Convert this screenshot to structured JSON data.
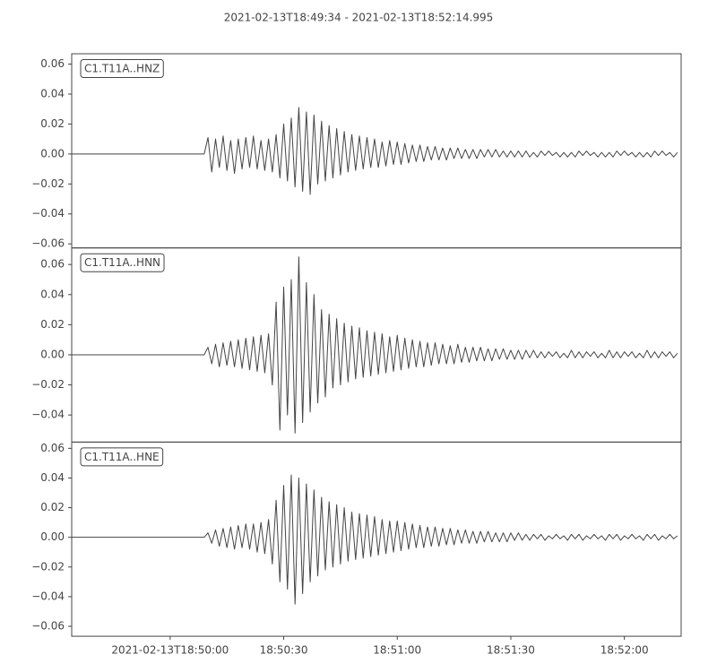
{
  "chart_data": {
    "type": "line",
    "title": "2021-02-13T18:49:34  -  2021-02-13T18:52:14.995",
    "color": "#444444",
    "xlim": [
      "2021-02-13T18:49:34",
      "2021-02-13T18:52:14.995"
    ],
    "xticks": [
      "2021-02-13T18:50:00",
      {
        "value": "2021-02-13T18:50:30",
        "label": "18:50:30"
      },
      {
        "value": "2021-02-13T18:51:00",
        "label": "18:51:00"
      },
      {
        "value": "2021-02-13T18:51:30",
        "label": "18:51:30"
      },
      {
        "value": "2021-02-13T18:52:00",
        "label": "18:52:00"
      }
    ],
    "x": [
      "2021-02-13T18:49:34",
      "2021-02-13T18:49:35",
      "2021-02-13T18:49:36",
      "2021-02-13T18:49:37",
      "2021-02-13T18:49:38",
      "2021-02-13T18:49:39",
      "2021-02-13T18:49:40",
      "2021-02-13T18:49:41",
      "2021-02-13T18:49:42",
      "2021-02-13T18:49:43",
      "2021-02-13T18:49:44",
      "2021-02-13T18:49:45",
      "2021-02-13T18:49:46",
      "2021-02-13T18:49:47",
      "2021-02-13T18:49:48",
      "2021-02-13T18:49:49",
      "2021-02-13T18:49:50",
      "2021-02-13T18:49:51",
      "2021-02-13T18:49:52",
      "2021-02-13T18:49:53",
      "2021-02-13T18:49:54",
      "2021-02-13T18:49:55",
      "2021-02-13T18:49:56",
      "2021-02-13T18:49:57",
      "2021-02-13T18:49:58",
      "2021-02-13T18:49:59",
      "2021-02-13T18:50:00",
      "2021-02-13T18:50:01",
      "2021-02-13T18:50:02",
      "2021-02-13T18:50:03",
      "2021-02-13T18:50:04",
      "2021-02-13T18:50:05",
      "2021-02-13T18:50:06",
      "2021-02-13T18:50:07",
      "2021-02-13T18:50:08",
      "2021-02-13T18:50:09",
      "2021-02-13T18:50:10",
      "2021-02-13T18:50:11",
      "2021-02-13T18:50:12",
      "2021-02-13T18:50:13",
      "2021-02-13T18:50:14",
      "2021-02-13T18:50:15",
      "2021-02-13T18:50:16",
      "2021-02-13T18:50:17",
      "2021-02-13T18:50:18",
      "2021-02-13T18:50:19",
      "2021-02-13T18:50:20",
      "2021-02-13T18:50:21",
      "2021-02-13T18:50:22",
      "2021-02-13T18:50:23",
      "2021-02-13T18:50:24",
      "2021-02-13T18:50:25",
      "2021-02-13T18:50:26",
      "2021-02-13T18:50:27",
      "2021-02-13T18:50:28",
      "2021-02-13T18:50:29",
      "2021-02-13T18:50:30",
      "2021-02-13T18:50:31",
      "2021-02-13T18:50:32",
      "2021-02-13T18:50:33",
      "2021-02-13T18:50:34",
      "2021-02-13T18:50:35",
      "2021-02-13T18:50:36",
      "2021-02-13T18:50:37",
      "2021-02-13T18:50:38",
      "2021-02-13T18:50:39",
      "2021-02-13T18:50:40",
      "2021-02-13T18:50:41",
      "2021-02-13T18:50:42",
      "2021-02-13T18:50:43",
      "2021-02-13T18:50:44",
      "2021-02-13T18:50:45",
      "2021-02-13T18:50:46",
      "2021-02-13T18:50:47",
      "2021-02-13T18:50:48",
      "2021-02-13T18:50:49",
      "2021-02-13T18:50:50",
      "2021-02-13T18:50:51",
      "2021-02-13T18:50:52",
      "2021-02-13T18:50:53",
      "2021-02-13T18:50:54",
      "2021-02-13T18:50:55",
      "2021-02-13T18:50:56",
      "2021-02-13T18:50:57",
      "2021-02-13T18:50:58",
      "2021-02-13T18:50:59",
      "2021-02-13T18:51:00",
      "2021-02-13T18:51:01",
      "2021-02-13T18:51:02",
      "2021-02-13T18:51:03",
      "2021-02-13T18:51:04",
      "2021-02-13T18:51:05",
      "2021-02-13T18:51:06",
      "2021-02-13T18:51:07",
      "2021-02-13T18:51:08",
      "2021-02-13T18:51:09",
      "2021-02-13T18:51:10",
      "2021-02-13T18:51:11",
      "2021-02-13T18:51:12",
      "2021-02-13T18:51:13",
      "2021-02-13T18:51:14",
      "2021-02-13T18:51:15",
      "2021-02-13T18:51:16",
      "2021-02-13T18:51:17",
      "2021-02-13T18:51:18",
      "2021-02-13T18:51:19",
      "2021-02-13T18:51:20",
      "2021-02-13T18:51:21",
      "2021-02-13T18:51:22",
      "2021-02-13T18:51:23",
      "2021-02-13T18:51:24",
      "2021-02-13T18:51:25",
      "2021-02-13T18:51:26",
      "2021-02-13T18:51:27",
      "2021-02-13T18:51:28",
      "2021-02-13T18:51:29",
      "2021-02-13T18:51:30",
      "2021-02-13T18:51:31",
      "2021-02-13T18:51:32",
      "2021-02-13T18:51:33",
      "2021-02-13T18:51:34",
      "2021-02-13T18:51:35",
      "2021-02-13T18:51:36",
      "2021-02-13T18:51:37",
      "2021-02-13T18:51:38",
      "2021-02-13T18:51:39",
      "2021-02-13T18:51:40",
      "2021-02-13T18:51:41",
      "2021-02-13T18:51:42",
      "2021-02-13T18:51:43",
      "2021-02-13T18:51:44",
      "2021-02-13T18:51:45",
      "2021-02-13T18:51:46",
      "2021-02-13T18:51:47",
      "2021-02-13T18:51:48",
      "2021-02-13T18:51:49",
      "2021-02-13T18:51:50",
      "2021-02-13T18:51:51",
      "2021-02-13T18:51:52",
      "2021-02-13T18:51:53",
      "2021-02-13T18:51:54",
      "2021-02-13T18:51:55",
      "2021-02-13T18:51:56",
      "2021-02-13T18:51:57",
      "2021-02-13T18:51:58",
      "2021-02-13T18:51:59",
      "2021-02-13T18:52:00",
      "2021-02-13T18:52:01",
      "2021-02-13T18:52:02",
      "2021-02-13T18:52:03",
      "2021-02-13T18:52:04",
      "2021-02-13T18:52:05",
      "2021-02-13T18:52:06",
      "2021-02-13T18:52:07",
      "2021-02-13T18:52:08",
      "2021-02-13T18:52:09",
      "2021-02-13T18:52:10",
      "2021-02-13T18:52:11",
      "2021-02-13T18:52:12",
      "2021-02-13T18:52:13",
      "2021-02-13T18:52:14"
    ],
    "series": [
      {
        "name": "C1.T11A..HNZ",
        "ylim": [
          -0.0627,
          0.0669
        ],
        "yticks": [
          {
            "value": -0.06,
            "label": "−0.06"
          },
          {
            "value": -0.04,
            "label": "−0.04"
          },
          {
            "value": -0.02,
            "label": "−0.02"
          },
          {
            "value": 0,
            "label": "0.00"
          },
          0.02,
          0.04,
          0.06
        ],
        "values": [
          0,
          0,
          0,
          0,
          0,
          0,
          0,
          0,
          0,
          0,
          0,
          0,
          0,
          0,
          0,
          0,
          0,
          0,
          0,
          0,
          0,
          0,
          0,
          0,
          0,
          0,
          0,
          0,
          0,
          0,
          0,
          0,
          0,
          0,
          0,
          0,
          0.011,
          -0.012,
          0.01,
          -0.009,
          0.012,
          -0.011,
          0.009,
          -0.013,
          0.01,
          -0.01,
          0.011,
          -0.009,
          0.012,
          -0.01,
          0.009,
          -0.011,
          0.01,
          -0.012,
          0.013,
          -0.016,
          0.02,
          -0.018,
          0.024,
          -0.022,
          0.031,
          -0.025,
          0.028,
          -0.027,
          0.026,
          -0.02,
          0.022,
          -0.018,
          0.019,
          -0.016,
          0.017,
          -0.014,
          0.015,
          -0.012,
          0.013,
          -0.011,
          0.012,
          -0.01,
          0.011,
          -0.009,
          0.01,
          -0.009,
          0.008,
          -0.008,
          0.009,
          -0.007,
          0.008,
          -0.007,
          0.007,
          -0.006,
          0.006,
          -0.005,
          0.006,
          -0.005,
          0.005,
          -0.004,
          0.005,
          -0.004,
          0.004,
          -0.004,
          0.004,
          -0.003,
          0.004,
          -0.003,
          0.003,
          -0.003,
          0.003,
          -0.003,
          0.003,
          -0.002,
          0.003,
          -0.002,
          0.003,
          -0.002,
          0.002,
          -0.002,
          0.002,
          -0.002,
          0.002,
          -0.002,
          0.002,
          -0.002,
          0.001,
          -0.002,
          0.002,
          -0.001,
          0.002,
          -0.001,
          0.001,
          -0.002,
          0.001,
          -0.002,
          0.001,
          -0.002,
          0.002,
          -0.001,
          0.002,
          -0.001,
          0.001,
          -0.002,
          0.001,
          -0.002,
          0.001,
          -0.002,
          0.002,
          -0.001,
          0.002,
          -0.001,
          0.001,
          -0.002,
          0.001,
          -0.002,
          0.001,
          -0.002,
          0.002,
          -0.001,
          0.002,
          -0.001,
          0.001,
          -0.002,
          0.001
        ]
      },
      {
        "name": "C1.T11A..HNN",
        "ylim": [
          -0.058,
          0.071
        ],
        "yticks": [
          {
            "value": -0.04,
            "label": "−0.04"
          },
          {
            "value": -0.02,
            "label": "−0.02"
          },
          {
            "value": 0,
            "label": "0.00"
          },
          0.02,
          0.04,
          0.06
        ],
        "values": [
          0,
          0,
          0,
          0,
          0,
          0,
          0,
          0,
          0,
          0,
          0,
          0,
          0,
          0,
          0,
          0,
          0,
          0,
          0,
          0,
          0,
          0,
          0,
          0,
          0,
          0,
          0,
          0,
          0,
          0,
          0,
          0,
          0,
          0,
          0,
          0,
          0.005,
          -0.006,
          0.007,
          -0.008,
          0.008,
          -0.007,
          0.009,
          -0.008,
          0.01,
          -0.009,
          0.011,
          -0.01,
          0.012,
          -0.011,
          0.013,
          -0.012,
          0.014,
          -0.02,
          0.035,
          -0.05,
          0.045,
          -0.04,
          0.05,
          -0.052,
          0.065,
          -0.045,
          0.048,
          -0.038,
          0.04,
          -0.032,
          0.03,
          -0.028,
          0.027,
          -0.022,
          0.024,
          -0.02,
          0.021,
          -0.018,
          0.019,
          -0.016,
          0.018,
          -0.015,
          0.016,
          -0.014,
          0.015,
          -0.013,
          0.014,
          -0.012,
          0.012,
          -0.011,
          0.013,
          -0.01,
          0.011,
          -0.009,
          0.01,
          -0.008,
          0.009,
          -0.008,
          0.008,
          -0.007,
          0.008,
          -0.006,
          0.007,
          -0.006,
          0.006,
          -0.006,
          0.007,
          -0.005,
          0.005,
          -0.005,
          0.005,
          -0.004,
          0.005,
          -0.004,
          0.004,
          -0.004,
          0.004,
          -0.003,
          0.004,
          -0.003,
          0.003,
          -0.003,
          0.003,
          -0.003,
          0.003,
          -0.002,
          0.003,
          -0.002,
          0.002,
          -0.002,
          0.002,
          -0.001,
          0.002,
          -0.002,
          0.001,
          -0.002,
          0.003,
          -0.002,
          0.002,
          -0.002,
          0.002,
          -0.001,
          0.002,
          -0.002,
          0.001,
          -0.002,
          0.003,
          -0.002,
          0.002,
          -0.002,
          0.002,
          -0.001,
          0.002,
          -0.002,
          0.001,
          -0.002,
          0.003,
          -0.002,
          0.002,
          -0.002,
          0.002,
          -0.001,
          0.002,
          -0.002,
          0.001
        ]
      },
      {
        "name": "C1.T11A..HNE",
        "ylim": [
          -0.0667,
          0.0642
        ],
        "yticks": [
          {
            "value": -0.06,
            "label": "−0.06"
          },
          {
            "value": -0.04,
            "label": "−0.04"
          },
          {
            "value": -0.02,
            "label": "−0.02"
          },
          {
            "value": 0,
            "label": "0.00"
          },
          0.02,
          0.04,
          0.06
        ],
        "values": [
          0,
          0,
          0,
          0,
          0,
          0,
          0,
          0,
          0,
          0,
          0,
          0,
          0,
          0,
          0,
          0,
          0,
          0,
          0,
          0,
          0,
          0,
          0,
          0,
          0,
          0,
          0,
          0,
          0,
          0,
          0,
          0,
          0,
          0,
          0,
          0,
          0.003,
          -0.004,
          0.005,
          -0.006,
          0.006,
          -0.007,
          0.007,
          -0.008,
          0.008,
          -0.007,
          0.009,
          -0.008,
          0.009,
          -0.01,
          0.01,
          -0.011,
          0.012,
          -0.018,
          0.025,
          -0.03,
          0.035,
          -0.035,
          0.042,
          -0.045,
          0.04,
          -0.038,
          0.036,
          -0.03,
          0.032,
          -0.026,
          0.027,
          -0.022,
          0.024,
          -0.02,
          0.022,
          -0.018,
          0.02,
          -0.016,
          0.017,
          -0.015,
          0.016,
          -0.014,
          0.015,
          -0.013,
          0.014,
          -0.012,
          0.012,
          -0.011,
          0.011,
          -0.01,
          0.011,
          -0.009,
          0.01,
          -0.008,
          0.009,
          -0.007,
          0.008,
          -0.007,
          0.007,
          -0.006,
          0.007,
          -0.006,
          0.006,
          -0.005,
          0.006,
          -0.005,
          0.005,
          -0.004,
          0.005,
          -0.004,
          0.004,
          -0.004,
          0.004,
          -0.003,
          0.004,
          -0.003,
          0.003,
          -0.003,
          0.003,
          -0.003,
          0.003,
          -0.002,
          0.003,
          -0.002,
          0.002,
          -0.002,
          0.002,
          -0.001,
          0.002,
          -0.002,
          0.001,
          -0.001,
          0.002,
          -0.001,
          0.001,
          -0.002,
          0.002,
          -0.001,
          0.002,
          -0.002,
          0.001,
          -0.001,
          0.002,
          -0.001,
          0.001,
          -0.002,
          0.002,
          -0.001,
          0.002,
          -0.002,
          0.001,
          -0.001,
          0.002,
          -0.001,
          0.001,
          -0.002,
          0.002,
          -0.001,
          0.002,
          -0.002,
          0.001,
          -0.001,
          0.002,
          -0.001,
          0.001
        ]
      }
    ]
  }
}
